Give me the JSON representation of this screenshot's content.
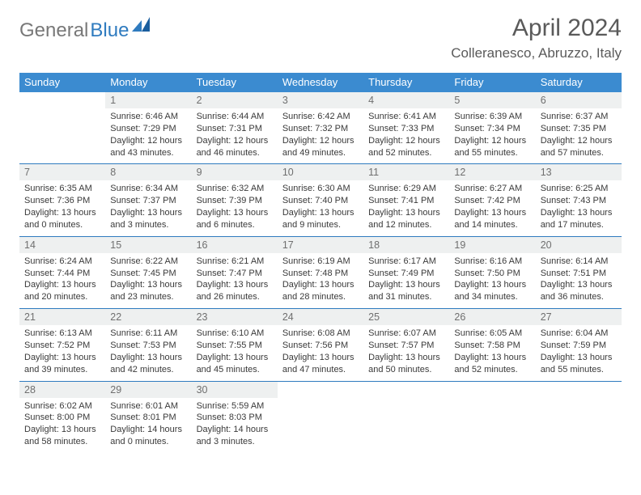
{
  "brand": {
    "general": "General",
    "blue": "Blue"
  },
  "title": "April 2024",
  "location": "Colleranesco, Abruzzo, Italy",
  "colors": {
    "header_bg": "#3b8bd0",
    "header_text": "#ffffff",
    "daynum_bg": "#eef0f0",
    "daynum_text": "#6f6f6f",
    "rule_color": "#2f7bbf",
    "body_text": "#3a3a3a",
    "page_bg": "#ffffff",
    "logo_blue": "#2f7bbf",
    "logo_gray": "#787878"
  },
  "typography": {
    "title_fontsize": 30,
    "location_fontsize": 17,
    "dayheader_fontsize": 13,
    "daynum_fontsize": 12.5,
    "cell_fontsize": 11,
    "font_family": "Arial"
  },
  "day_headers": [
    "Sunday",
    "Monday",
    "Tuesday",
    "Wednesday",
    "Thursday",
    "Friday",
    "Saturday"
  ],
  "weeks": [
    [
      null,
      {
        "n": "1",
        "sunrise": "6:46 AM",
        "sunset": "7:29 PM",
        "dl1": "Daylight: 12 hours",
        "dl2": "and 43 minutes."
      },
      {
        "n": "2",
        "sunrise": "6:44 AM",
        "sunset": "7:31 PM",
        "dl1": "Daylight: 12 hours",
        "dl2": "and 46 minutes."
      },
      {
        "n": "3",
        "sunrise": "6:42 AM",
        "sunset": "7:32 PM",
        "dl1": "Daylight: 12 hours",
        "dl2": "and 49 minutes."
      },
      {
        "n": "4",
        "sunrise": "6:41 AM",
        "sunset": "7:33 PM",
        "dl1": "Daylight: 12 hours",
        "dl2": "and 52 minutes."
      },
      {
        "n": "5",
        "sunrise": "6:39 AM",
        "sunset": "7:34 PM",
        "dl1": "Daylight: 12 hours",
        "dl2": "and 55 minutes."
      },
      {
        "n": "6",
        "sunrise": "6:37 AM",
        "sunset": "7:35 PM",
        "dl1": "Daylight: 12 hours",
        "dl2": "and 57 minutes."
      }
    ],
    [
      {
        "n": "7",
        "sunrise": "6:35 AM",
        "sunset": "7:36 PM",
        "dl1": "Daylight: 13 hours",
        "dl2": "and 0 minutes."
      },
      {
        "n": "8",
        "sunrise": "6:34 AM",
        "sunset": "7:37 PM",
        "dl1": "Daylight: 13 hours",
        "dl2": "and 3 minutes."
      },
      {
        "n": "9",
        "sunrise": "6:32 AM",
        "sunset": "7:39 PM",
        "dl1": "Daylight: 13 hours",
        "dl2": "and 6 minutes."
      },
      {
        "n": "10",
        "sunrise": "6:30 AM",
        "sunset": "7:40 PM",
        "dl1": "Daylight: 13 hours",
        "dl2": "and 9 minutes."
      },
      {
        "n": "11",
        "sunrise": "6:29 AM",
        "sunset": "7:41 PM",
        "dl1": "Daylight: 13 hours",
        "dl2": "and 12 minutes."
      },
      {
        "n": "12",
        "sunrise": "6:27 AM",
        "sunset": "7:42 PM",
        "dl1": "Daylight: 13 hours",
        "dl2": "and 14 minutes."
      },
      {
        "n": "13",
        "sunrise": "6:25 AM",
        "sunset": "7:43 PM",
        "dl1": "Daylight: 13 hours",
        "dl2": "and 17 minutes."
      }
    ],
    [
      {
        "n": "14",
        "sunrise": "6:24 AM",
        "sunset": "7:44 PM",
        "dl1": "Daylight: 13 hours",
        "dl2": "and 20 minutes."
      },
      {
        "n": "15",
        "sunrise": "6:22 AM",
        "sunset": "7:45 PM",
        "dl1": "Daylight: 13 hours",
        "dl2": "and 23 minutes."
      },
      {
        "n": "16",
        "sunrise": "6:21 AM",
        "sunset": "7:47 PM",
        "dl1": "Daylight: 13 hours",
        "dl2": "and 26 minutes."
      },
      {
        "n": "17",
        "sunrise": "6:19 AM",
        "sunset": "7:48 PM",
        "dl1": "Daylight: 13 hours",
        "dl2": "and 28 minutes."
      },
      {
        "n": "18",
        "sunrise": "6:17 AM",
        "sunset": "7:49 PM",
        "dl1": "Daylight: 13 hours",
        "dl2": "and 31 minutes."
      },
      {
        "n": "19",
        "sunrise": "6:16 AM",
        "sunset": "7:50 PM",
        "dl1": "Daylight: 13 hours",
        "dl2": "and 34 minutes."
      },
      {
        "n": "20",
        "sunrise": "6:14 AM",
        "sunset": "7:51 PM",
        "dl1": "Daylight: 13 hours",
        "dl2": "and 36 minutes."
      }
    ],
    [
      {
        "n": "21",
        "sunrise": "6:13 AM",
        "sunset": "7:52 PM",
        "dl1": "Daylight: 13 hours",
        "dl2": "and 39 minutes."
      },
      {
        "n": "22",
        "sunrise": "6:11 AM",
        "sunset": "7:53 PM",
        "dl1": "Daylight: 13 hours",
        "dl2": "and 42 minutes."
      },
      {
        "n": "23",
        "sunrise": "6:10 AM",
        "sunset": "7:55 PM",
        "dl1": "Daylight: 13 hours",
        "dl2": "and 45 minutes."
      },
      {
        "n": "24",
        "sunrise": "6:08 AM",
        "sunset": "7:56 PM",
        "dl1": "Daylight: 13 hours",
        "dl2": "and 47 minutes."
      },
      {
        "n": "25",
        "sunrise": "6:07 AM",
        "sunset": "7:57 PM",
        "dl1": "Daylight: 13 hours",
        "dl2": "and 50 minutes."
      },
      {
        "n": "26",
        "sunrise": "6:05 AM",
        "sunset": "7:58 PM",
        "dl1": "Daylight: 13 hours",
        "dl2": "and 52 minutes."
      },
      {
        "n": "27",
        "sunrise": "6:04 AM",
        "sunset": "7:59 PM",
        "dl1": "Daylight: 13 hours",
        "dl2": "and 55 minutes."
      }
    ],
    [
      {
        "n": "28",
        "sunrise": "6:02 AM",
        "sunset": "8:00 PM",
        "dl1": "Daylight: 13 hours",
        "dl2": "and 58 minutes."
      },
      {
        "n": "29",
        "sunrise": "6:01 AM",
        "sunset": "8:01 PM",
        "dl1": "Daylight: 14 hours",
        "dl2": "and 0 minutes."
      },
      {
        "n": "30",
        "sunrise": "5:59 AM",
        "sunset": "8:03 PM",
        "dl1": "Daylight: 14 hours",
        "dl2": "and 3 minutes."
      },
      null,
      null,
      null,
      null
    ]
  ],
  "labels": {
    "sunrise_prefix": "Sunrise: ",
    "sunset_prefix": "Sunset: "
  }
}
